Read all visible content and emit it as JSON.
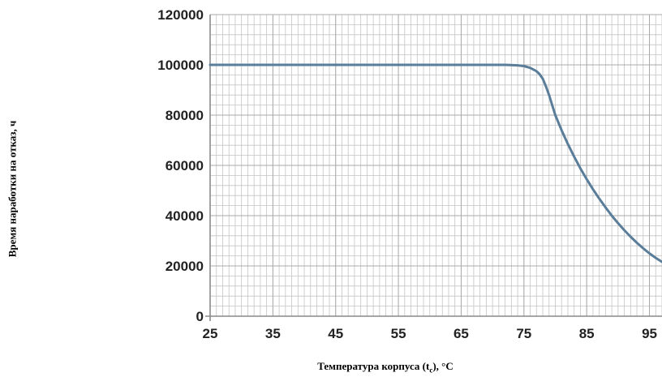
{
  "chart_data": {
    "type": "line",
    "title": "",
    "ylabel": "Время наработки на отказ, ч",
    "xlabel_main": "Температура корпуса (t",
    "xlabel_sub": "c",
    "xlabel_tail": "), °C",
    "xlim": [
      25,
      97
    ],
    "ylim": [
      0,
      120000
    ],
    "x_ticks": [
      25,
      35,
      45,
      55,
      65,
      75,
      85,
      95
    ],
    "y_ticks": [
      0,
      20000,
      40000,
      60000,
      80000,
      100000,
      120000
    ],
    "grid": "on",
    "colors": {
      "line": "#5a7d9a",
      "grid": "#c4c4c4",
      "axis": "#8a8a8a"
    },
    "series": [
      {
        "x": [
          25,
          35,
          45,
          55,
          65,
          70,
          72,
          74,
          75,
          76,
          77,
          77.5,
          78,
          78.5,
          79,
          79.5,
          80,
          81,
          82,
          83,
          84,
          85,
          86,
          87,
          88,
          89,
          90,
          91,
          92,
          93,
          94,
          95,
          96,
          97
        ],
        "y": [
          100000,
          100000,
          100000,
          100000,
          100000,
          100000,
          100000,
          99800,
          99500,
          98800,
          97500,
          96300,
          94500,
          91500,
          88000,
          84000,
          80000,
          74000,
          68500,
          63500,
          58800,
          54500,
          50500,
          46800,
          43300,
          40000,
          37000,
          34200,
          31600,
          29200,
          27000,
          25000,
          23200,
          21600
        ]
      }
    ]
  }
}
